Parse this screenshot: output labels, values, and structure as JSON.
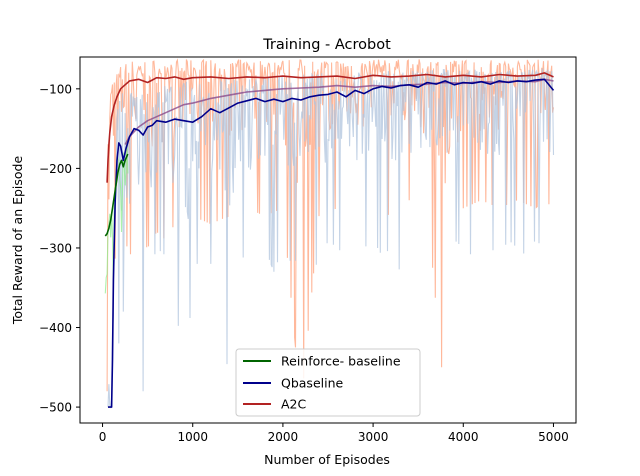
{
  "chart_data": {
    "type": "line",
    "title": "Training - Acrobot",
    "xlabel": "Number of Episodes",
    "ylabel": "Total Reward of an Episode",
    "xlim": [
      -250,
      5250
    ],
    "ylim": [
      -520,
      -60
    ],
    "xticks": [
      0,
      1000,
      2000,
      3000,
      4000,
      5000
    ],
    "xtick_labels": [
      "0",
      "1000",
      "2000",
      "3000",
      "4000",
      "5000"
    ],
    "yticks": [
      -500,
      -400,
      -300,
      -200,
      -100
    ],
    "ytick_labels": [
      "−500",
      "−400",
      "−300",
      "−200",
      "−100"
    ],
    "grid": false,
    "legend_position": "lower center",
    "series": [
      {
        "name": "Reinforce- baseline",
        "color": "#006400",
        "raw_color": "#90ee90",
        "x": [
          30,
          50,
          70,
          90,
          110,
          130,
          150,
          170,
          190,
          210,
          230,
          250,
          280
        ],
        "y": [
          -285,
          -282,
          -275,
          -265,
          -250,
          -235,
          -220,
          -205,
          -195,
          -190,
          -198,
          -190,
          -182
        ],
        "raw_low": [
          -500,
          -430,
          -400,
          -380,
          -360,
          -340,
          -320,
          -300,
          -290,
          -280,
          -300,
          -290,
          -280
        ]
      },
      {
        "name": "Qbaseline",
        "color": "#00008b",
        "raw_color": "#b0c4de",
        "x": [
          60,
          80,
          100,
          110,
          120,
          140,
          160,
          180,
          200,
          230,
          260,
          300,
          350,
          400,
          450,
          500,
          550,
          600,
          700,
          800,
          900,
          1000,
          1100,
          1200,
          1300,
          1400,
          1500,
          1600,
          1700,
          1800,
          1900,
          2000,
          2100,
          2200,
          2300,
          2400,
          2500,
          2600,
          2700,
          2800,
          2900,
          3000,
          3100,
          3200,
          3300,
          3400,
          3500,
          3600,
          3700,
          3800,
          3900,
          4000,
          4100,
          4200,
          4300,
          4400,
          4500,
          4600,
          4700,
          4800,
          4900,
          5000
        ],
        "y": [
          -500,
          -500,
          -500,
          -440,
          -340,
          -240,
          -190,
          -168,
          -172,
          -190,
          -175,
          -160,
          -150,
          -152,
          -158,
          -148,
          -146,
          -140,
          -142,
          -138,
          -140,
          -142,
          -135,
          -125,
          -130,
          -124,
          -118,
          -115,
          -112,
          -116,
          -113,
          -116,
          -112,
          -114,
          -110,
          -108,
          -107,
          -104,
          -110,
          -102,
          -106,
          -100,
          -97,
          -99,
          -96,
          -95,
          -98,
          -92,
          -94,
          -90,
          -95,
          -92,
          -93,
          -91,
          -94,
          -90,
          -92,
          -90,
          -91,
          -89,
          -88,
          -102
        ],
        "raw_low": [
          -500,
          -500,
          -500,
          -500,
          -500,
          -480,
          -440,
          -420,
          -400,
          -380,
          -370,
          -360,
          -350,
          -330,
          -480,
          -360,
          -320,
          -300,
          -310,
          -330,
          -500,
          -340,
          -300,
          -320,
          -310,
          -480,
          -300,
          -320,
          -310,
          -300,
          -330,
          -300,
          -320,
          -310,
          -300,
          -330,
          -290,
          -300,
          -310,
          -320,
          -300,
          -290,
          -310,
          -300,
          -330,
          -290,
          -300,
          -310,
          -290,
          -300,
          -290,
          -300,
          -310,
          -290,
          -300,
          -310,
          -290,
          -300,
          -310,
          -290,
          -300,
          -300
        ],
        "raw_high": [
          -480,
          -460,
          -420,
          -300,
          -200,
          -150,
          -120,
          -110,
          -105,
          -100,
          -100,
          -98,
          -95,
          -95,
          -96,
          -94,
          -92,
          -90,
          -92,
          -90,
          -90,
          -92,
          -88,
          -86,
          -88,
          -86,
          -84,
          -84,
          -82,
          -84,
          -82,
          -84,
          -82,
          -82,
          -80,
          -80,
          -80,
          -78,
          -80,
          -78,
          -80,
          -78,
          -76,
          -78,
          -76,
          -76,
          -78,
          -75,
          -76,
          -74,
          -76,
          -75,
          -76,
          -75,
          -76,
          -74,
          -75,
          -74,
          -75,
          -74,
          -73,
          -76
        ]
      },
      {
        "name": "A2C",
        "color": "#b22222",
        "raw_color": "#ffa07a",
        "x": [
          50,
          60,
          70,
          80,
          100,
          130,
          160,
          200,
          250,
          300,
          400,
          500,
          600,
          700,
          800,
          900,
          1000,
          1200,
          1400,
          1600,
          1800,
          2000,
          2200,
          2400,
          2600,
          2800,
          3000,
          3200,
          3400,
          3600,
          3800,
          4000,
          4200,
          4400,
          4600,
          4800,
          4900,
          5000
        ],
        "y": [
          -218,
          -190,
          -170,
          -155,
          -135,
          -120,
          -110,
          -100,
          -95,
          -90,
          -88,
          -92,
          -86,
          -87,
          -85,
          -88,
          -86,
          -85,
          -87,
          -85,
          -86,
          -84,
          -86,
          -85,
          -84,
          -87,
          -83,
          -85,
          -84,
          -82,
          -85,
          -83,
          -85,
          -82,
          -84,
          -83,
          -80,
          -85
        ],
        "raw_low": [
          -480,
          -400,
          -380,
          -360,
          -340,
          -320,
          -300,
          -300,
          -290,
          -310,
          -290,
          -300,
          -280,
          -290,
          -270,
          -280,
          -260,
          -270,
          -260,
          -250,
          -260,
          -250,
          -500,
          -260,
          -250,
          -240,
          -250,
          -260,
          -240,
          -250,
          -500,
          -250,
          -240,
          -250,
          -240,
          -250,
          -240,
          -250
        ],
        "raw_high": [
          -150,
          -120,
          -110,
          -100,
          -90,
          -80,
          -75,
          -70,
          -66,
          -64,
          -64,
          -63,
          -63,
          -63,
          -63,
          -63,
          -63,
          -63,
          -63,
          -63,
          -63,
          -63,
          -63,
          -63,
          -63,
          -63,
          -63,
          -63,
          -63,
          -63,
          -63,
          -63,
          -63,
          -63,
          -63,
          -63,
          -63,
          -63
        ]
      },
      {
        "name": "",
        "color": "#8b4a8b",
        "raw_color": "#d8a08a",
        "x": [
          250,
          300,
          400,
          500,
          600,
          700,
          800,
          900,
          1000,
          1100,
          1200,
          1300,
          1400,
          1500,
          1600,
          1700,
          1800,
          1900,
          2000,
          2200,
          2400,
          2600,
          2800,
          3000,
          3200,
          3400,
          3600,
          3800,
          4000,
          4200,
          4400,
          4600,
          4800,
          4900,
          5000
        ],
        "y": [
          -170,
          -160,
          -148,
          -140,
          -135,
          -130,
          -125,
          -120,
          -118,
          -115,
          -112,
          -110,
          -108,
          -106,
          -104,
          -103,
          -102,
          -101,
          -100,
          -99,
          -98,
          -96,
          -98,
          -96,
          -97,
          -95,
          -94,
          -92,
          -93,
          -91,
          -92,
          -90,
          -91,
          -88,
          -90
        ]
      }
    ]
  },
  "legend": {
    "items": [
      {
        "label": "Reinforce- baseline",
        "color": "#006400"
      },
      {
        "label": "Qbaseline",
        "color": "#00008b"
      },
      {
        "label": "A2C",
        "color": "#b22222"
      }
    ]
  }
}
